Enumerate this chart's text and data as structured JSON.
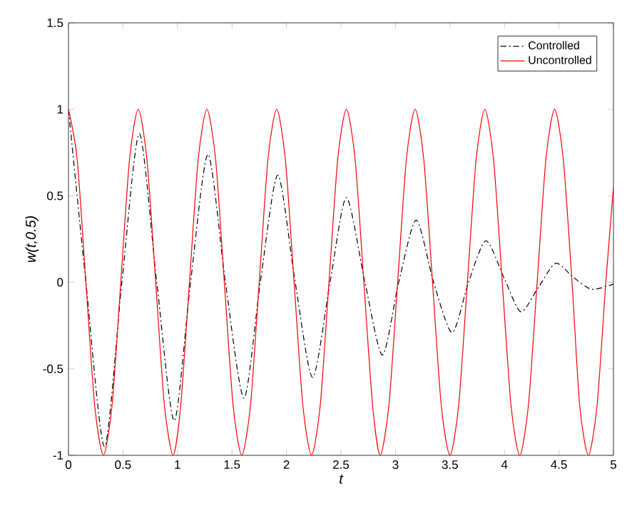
{
  "chart_data": {
    "type": "line",
    "xlabel": "t",
    "ylabel": "w(t,0.5)",
    "xlim": [
      0,
      5
    ],
    "ylim": [
      -1,
      1.5
    ],
    "xticks": [
      0,
      0.5,
      1,
      1.5,
      2,
      2.5,
      3,
      3.5,
      4,
      4.5,
      5
    ],
    "yticks": [
      -1,
      -0.5,
      0,
      0.5,
      1,
      1.5
    ],
    "legend": "top right",
    "grid": false,
    "marker": "none",
    "series": [
      {
        "name": "Controlled",
        "color": "#000000",
        "line_style": "dashdot",
        "x": [
          0,
          0.16,
          0.33,
          0.49,
          0.65,
          0.81,
          0.97,
          1.12,
          1.28,
          1.44,
          1.61,
          1.76,
          1.92,
          2.08,
          2.24,
          2.4,
          2.55,
          2.72,
          2.88,
          3.03,
          3.19,
          3.35,
          3.52,
          3.67,
          3.83,
          4.0,
          4.15,
          4.31,
          4.47,
          4.63,
          4.8,
          5
        ],
        "values": [
          1,
          0,
          -0.95,
          0,
          0.86,
          0,
          -0.8,
          0,
          0.74,
          0,
          -0.67,
          0,
          0.62,
          0,
          -0.55,
          0,
          0.49,
          0,
          -0.42,
          0,
          0.36,
          0,
          -0.29,
          0,
          0.24,
          0.02,
          -0.17,
          -0.03,
          0.11,
          0.03,
          -0.04,
          -0.01
        ]
      },
      {
        "name": "Uncontrolled",
        "color": "#ff0000",
        "line_style": "solid",
        "x": [
          0,
          0.08,
          0.16,
          0.24,
          0.32,
          0.4,
          0.48,
          0.56,
          0.64,
          0.72,
          0.8,
          0.88,
          0.96,
          1.03,
          1.11,
          1.19,
          1.27,
          1.35,
          1.43,
          1.51,
          1.59,
          1.67,
          1.75,
          1.83,
          1.91,
          1.99,
          2.07,
          2.15,
          2.23,
          2.31,
          2.39,
          2.47,
          2.55,
          2.63,
          2.71,
          2.79,
          2.86,
          2.94,
          3.02,
          3.1,
          3.18,
          3.26,
          3.34,
          3.42,
          3.5,
          3.58,
          3.66,
          3.74,
          3.82,
          3.9,
          3.98,
          4.06,
          4.14,
          4.22,
          4.3,
          4.38,
          4.46,
          4.54,
          4.62,
          4.69,
          4.77,
          4.85,
          4.93,
          5
        ],
        "values": [
          1,
          0.71,
          0,
          -0.71,
          -1,
          -0.71,
          0,
          0.71,
          1,
          0.71,
          0,
          -0.71,
          -1,
          -0.71,
          0,
          0.71,
          1,
          0.71,
          0,
          -0.71,
          -1,
          -0.71,
          0,
          0.71,
          1,
          0.71,
          0,
          -0.71,
          -1,
          -0.71,
          0,
          0.71,
          1,
          0.71,
          0,
          -0.71,
          -1,
          -0.71,
          0,
          0.71,
          1,
          0.71,
          0,
          -0.71,
          -1,
          -0.71,
          0,
          0.71,
          1,
          0.71,
          0,
          -0.71,
          -1,
          -0.71,
          0,
          0.71,
          1,
          0.71,
          0,
          -0.71,
          -1,
          -0.71,
          0,
          0.55
        ]
      }
    ]
  }
}
